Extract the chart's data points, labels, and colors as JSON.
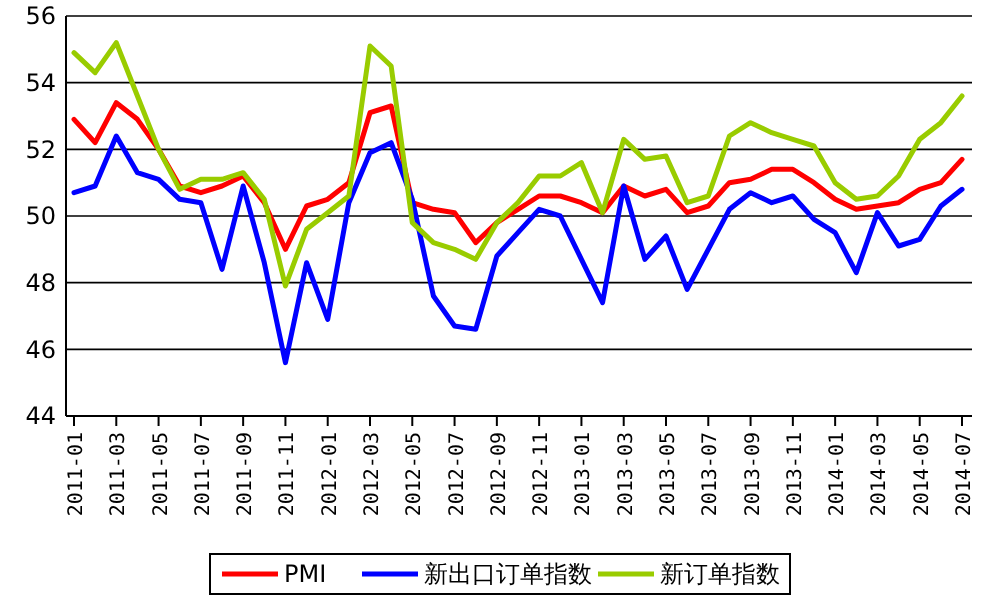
{
  "chart_data": {
    "type": "line",
    "categories": [
      "2011-01",
      null,
      "2011-03",
      null,
      "2011-05",
      null,
      "2011-07",
      null,
      "2011-09",
      null,
      "2011-11",
      null,
      "2012-01",
      null,
      "2012-03",
      null,
      "2012-05",
      null,
      "2012-07",
      null,
      "2012-09",
      null,
      "2012-11",
      null,
      "2013-01",
      null,
      "2013-03",
      null,
      "2013-05",
      null,
      "2013-07",
      null,
      "2013-09",
      null,
      "2013-11",
      null,
      "2014-01",
      null,
      "2014-03",
      null,
      "2014-05",
      null,
      "2014-07"
    ],
    "series": [
      {
        "name": "PMI",
        "color": "#ff0000",
        "values": [
          52.9,
          52.2,
          53.4,
          52.9,
          52.0,
          50.9,
          50.7,
          50.9,
          51.2,
          50.4,
          49.0,
          50.3,
          50.5,
          51.0,
          53.1,
          53.3,
          50.4,
          50.2,
          50.1,
          49.2,
          49.8,
          50.2,
          50.6,
          50.6,
          50.4,
          50.1,
          50.9,
          50.6,
          50.8,
          50.1,
          50.3,
          51.0,
          51.1,
          51.4,
          51.4,
          51.0,
          50.5,
          50.2,
          50.3,
          50.4,
          50.8,
          51.0,
          51.7
        ]
      },
      {
        "name": "新出口订单指数",
        "color": "#0000ff",
        "values": [
          50.7,
          50.9,
          52.4,
          51.3,
          51.1,
          50.5,
          50.4,
          48.4,
          50.9,
          48.6,
          45.6,
          48.6,
          46.9,
          50.4,
          51.9,
          52.2,
          50.5,
          47.6,
          46.7,
          46.6,
          48.8,
          49.5,
          50.2,
          50.0,
          48.7,
          47.4,
          50.9,
          48.7,
          49.4,
          47.8,
          49.0,
          50.2,
          50.7,
          50.4,
          50.6,
          49.9,
          49.5,
          48.3,
          50.1,
          49.1,
          49.3,
          50.3,
          50.8
        ]
      },
      {
        "name": "新订单指数",
        "color": "#99cc00",
        "values": [
          54.9,
          54.3,
          55.2,
          53.6,
          52.0,
          50.8,
          51.1,
          51.1,
          51.3,
          50.5,
          47.9,
          49.6,
          50.1,
          50.6,
          55.1,
          54.5,
          49.8,
          49.2,
          49.0,
          48.7,
          49.8,
          50.4,
          51.2,
          51.2,
          51.6,
          50.1,
          52.3,
          51.7,
          51.8,
          50.4,
          50.6,
          52.4,
          52.8,
          52.5,
          52.3,
          52.1,
          51.0,
          50.5,
          50.6,
          51.2,
          52.3,
          52.8,
          53.6
        ]
      }
    ],
    "ylim": [
      44,
      56
    ],
    "yticks": [
      44,
      46,
      48,
      50,
      52,
      54,
      56
    ],
    "grid": "y",
    "legend": "bottom",
    "marker": "none",
    "line_style": "solid"
  }
}
